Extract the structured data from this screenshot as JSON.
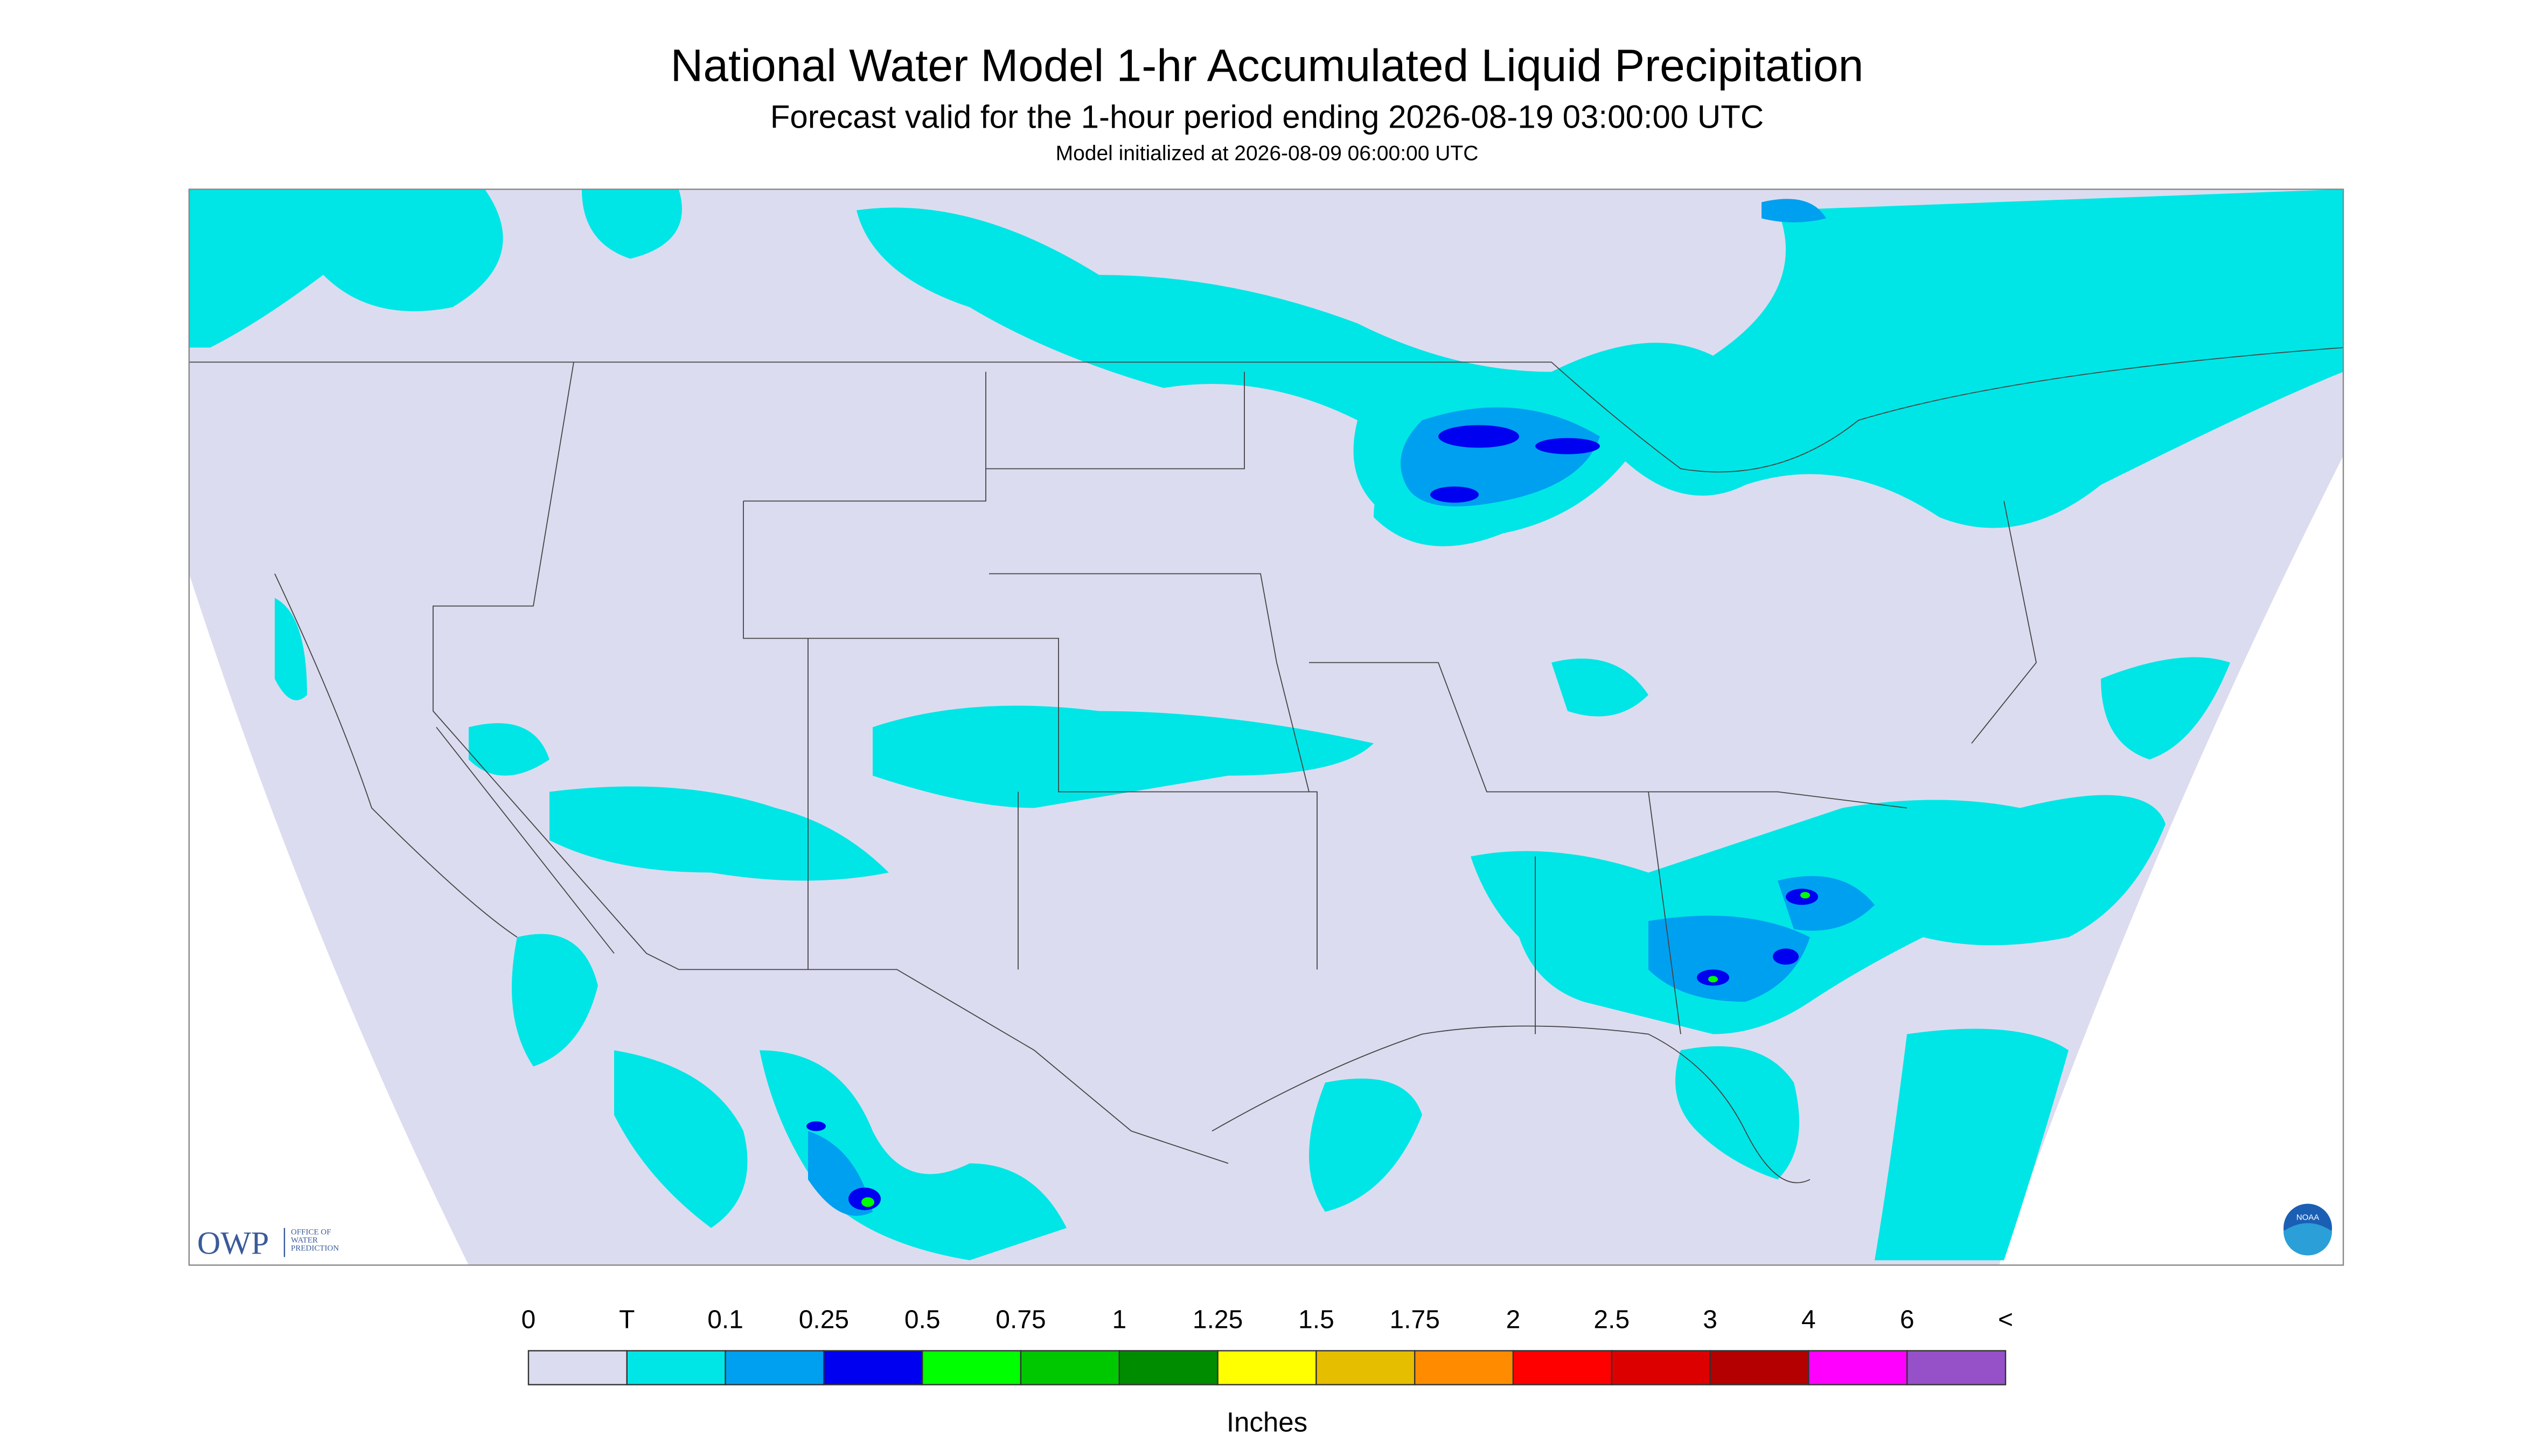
{
  "header": {
    "title": "National Water Model 1-hr Accumulated Liquid Precipitation",
    "subtitle": "Forecast valid for the 1-hour period ending 2026-08-19 03:00:00 UTC",
    "initialized": "Model initialized at 2026-08-09 06:00:00 UTC"
  },
  "logos": {
    "owp": "OWP",
    "owp_lines": [
      "OFFICE OF",
      "WATER",
      "PREDICTION"
    ],
    "noaa": "NOAA"
  },
  "legend": {
    "labels": [
      "0",
      "T",
      "0.1",
      "0.25",
      "0.5",
      "0.75",
      "1",
      "1.25",
      "1.5",
      "1.75",
      "2",
      "2.5",
      "3",
      "4",
      "6",
      "<"
    ],
    "colors": [
      "#dcdcf0",
      "#00e6e6",
      "#00a0f0",
      "#0000f0",
      "#00ff00",
      "#00c800",
      "#008c00",
      "#ffff00",
      "#e6be00",
      "#ff8c00",
      "#ff0000",
      "#dc0000",
      "#b40000",
      "#ff00ff",
      "#9650c8"
    ],
    "unit": "Inches"
  }
}
